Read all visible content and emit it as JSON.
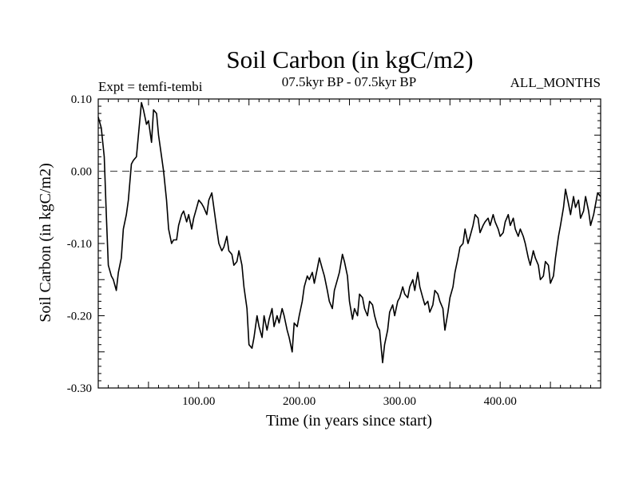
{
  "chart_data": {
    "type": "line",
    "title": "Soil Carbon (in kgC/m2)",
    "subtitle": "07.5kyr BP - 07.5kyr BP",
    "left_label": "Expt = temfi-tembi",
    "right_label": "ALL_MONTHS",
    "xlabel": "Time (in years since start)",
    "ylabel": "Soil Carbon (in kgC/m2)",
    "xlim": [
      0,
      500
    ],
    "ylim": [
      -0.3,
      0.1
    ],
    "x_ticks": [
      {
        "value": 100,
        "label": "100.00"
      },
      {
        "value": 200,
        "label": "200.00"
      },
      {
        "value": 300,
        "label": "300.00"
      },
      {
        "value": 400,
        "label": "400.00"
      }
    ],
    "y_ticks": [
      {
        "value": 0.1,
        "label": "0.10"
      },
      {
        "value": 0.0,
        "label": "0.00"
      },
      {
        "value": -0.1,
        "label": "-0.10"
      },
      {
        "value": -0.2,
        "label": "-0.20"
      },
      {
        "value": -0.3,
        "label": "-0.30"
      }
    ],
    "reference_line": {
      "value": 0.0,
      "style": "dashed"
    },
    "series": [
      {
        "name": "temfi-tembi",
        "x": [
          0,
          3,
          6,
          8,
          10,
          13,
          15,
          18,
          20,
          23,
          25,
          28,
          30,
          33,
          35,
          38,
          40,
          43,
          45,
          48,
          50,
          53,
          55,
          58,
          60,
          63,
          65,
          68,
          70,
          73,
          75,
          78,
          80,
          83,
          85,
          88,
          90,
          93,
          95,
          98,
          100,
          103,
          105,
          108,
          110,
          113,
          115,
          118,
          120,
          123,
          125,
          128,
          130,
          133,
          135,
          138,
          140,
          143,
          145,
          148,
          150,
          153,
          155,
          158,
          160,
          163,
          165,
          168,
          170,
          173,
          175,
          178,
          180,
          183,
          185,
          188,
          190,
          193,
          195,
          198,
          200,
          203,
          205,
          208,
          210,
          213,
          215,
          218,
          220,
          223,
          225,
          228,
          230,
          233,
          235,
          238,
          240,
          243,
          245,
          248,
          250,
          253,
          255,
          258,
          260,
          263,
          265,
          268,
          270,
          273,
          275,
          278,
          280,
          283,
          285,
          288,
          290,
          293,
          295,
          298,
          300,
          303,
          305,
          308,
          310,
          313,
          315,
          318,
          320,
          323,
          325,
          328,
          330,
          333,
          335,
          338,
          340,
          343,
          345,
          348,
          350,
          353,
          355,
          358,
          360,
          363,
          365,
          368,
          370,
          373,
          375,
          378,
          380,
          383,
          385,
          388,
          390,
          393,
          395,
          398,
          400,
          403,
          405,
          408,
          410,
          413,
          415,
          418,
          420,
          423,
          425,
          428,
          430,
          433,
          435,
          438,
          440,
          443,
          445,
          448,
          450,
          453,
          455,
          458,
          460,
          463,
          465,
          468,
          470,
          473,
          475,
          478,
          480,
          483,
          485,
          488,
          490,
          493,
          495,
          497,
          500
        ],
        "y": [
          0.075,
          0.06,
          0.02,
          -0.06,
          -0.13,
          -0.145,
          -0.15,
          -0.165,
          -0.14,
          -0.12,
          -0.08,
          -0.06,
          -0.04,
          0.01,
          0.015,
          0.02,
          0.05,
          0.095,
          0.085,
          0.065,
          0.07,
          0.04,
          0.085,
          0.08,
          0.05,
          0.02,
          0.0,
          -0.04,
          -0.08,
          -0.1,
          -0.095,
          -0.095,
          -0.075,
          -0.06,
          -0.055,
          -0.07,
          -0.06,
          -0.08,
          -0.065,
          -0.05,
          -0.04,
          -0.045,
          -0.05,
          -0.06,
          -0.04,
          -0.03,
          -0.05,
          -0.08,
          -0.1,
          -0.11,
          -0.105,
          -0.09,
          -0.11,
          -0.115,
          -0.13,
          -0.125,
          -0.11,
          -0.13,
          -0.16,
          -0.19,
          -0.24,
          -0.245,
          -0.23,
          -0.2,
          -0.215,
          -0.23,
          -0.2,
          -0.22,
          -0.205,
          -0.19,
          -0.215,
          -0.2,
          -0.21,
          -0.19,
          -0.2,
          -0.22,
          -0.23,
          -0.25,
          -0.21,
          -0.215,
          -0.2,
          -0.18,
          -0.16,
          -0.145,
          -0.15,
          -0.14,
          -0.155,
          -0.135,
          -0.12,
          -0.135,
          -0.145,
          -0.165,
          -0.18,
          -0.19,
          -0.165,
          -0.15,
          -0.14,
          -0.115,
          -0.125,
          -0.145,
          -0.18,
          -0.205,
          -0.19,
          -0.2,
          -0.17,
          -0.175,
          -0.19,
          -0.2,
          -0.18,
          -0.185,
          -0.2,
          -0.215,
          -0.22,
          -0.265,
          -0.24,
          -0.22,
          -0.195,
          -0.185,
          -0.2,
          -0.18,
          -0.175,
          -0.16,
          -0.17,
          -0.175,
          -0.16,
          -0.15,
          -0.165,
          -0.14,
          -0.16,
          -0.175,
          -0.185,
          -0.18,
          -0.195,
          -0.185,
          -0.165,
          -0.17,
          -0.18,
          -0.19,
          -0.22,
          -0.195,
          -0.175,
          -0.16,
          -0.14,
          -0.12,
          -0.105,
          -0.1,
          -0.08,
          -0.1,
          -0.09,
          -0.075,
          -0.06,
          -0.065,
          -0.085,
          -0.075,
          -0.07,
          -0.065,
          -0.075,
          -0.06,
          -0.07,
          -0.08,
          -0.09,
          -0.085,
          -0.07,
          -0.06,
          -0.075,
          -0.065,
          -0.08,
          -0.09,
          -0.08,
          -0.09,
          -0.1,
          -0.12,
          -0.13,
          -0.11,
          -0.12,
          -0.13,
          -0.15,
          -0.145,
          -0.125,
          -0.13,
          -0.155,
          -0.145,
          -0.12,
          -0.09,
          -0.075,
          -0.05,
          -0.025,
          -0.045,
          -0.06,
          -0.035,
          -0.05,
          -0.04,
          -0.065,
          -0.055,
          -0.035,
          -0.055,
          -0.075,
          -0.06,
          -0.045,
          -0.03,
          -0.035
        ]
      }
    ]
  }
}
